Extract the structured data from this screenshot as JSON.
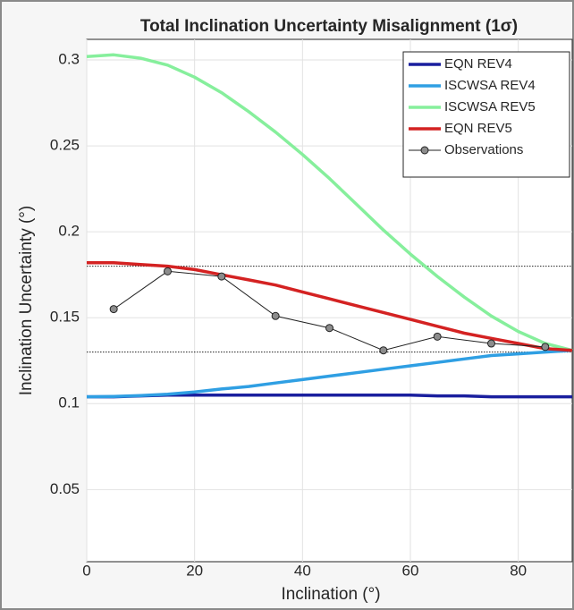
{
  "chart_data": {
    "type": "line",
    "title": "Total Inclination Uncertainty Misalignment (1σ)",
    "x_label": "Inclination (°)",
    "y_label": "Inclination Uncertainty (°)",
    "xlim": [
      0,
      90
    ],
    "xticks": [
      0,
      20,
      40,
      60,
      80
    ],
    "ylim": [
      0.008,
      0.312
    ],
    "yticks": [
      0.05,
      0.1,
      0.15,
      0.2,
      0.25,
      0.3
    ],
    "grid": true,
    "legend": "upper right",
    "x": [
      0,
      5,
      10,
      15,
      20,
      25,
      30,
      35,
      40,
      45,
      50,
      55,
      60,
      65,
      70,
      75,
      80,
      85,
      90
    ],
    "series": [
      {
        "name": "EQN REV4",
        "color": "#1a1f9e",
        "values": [
          0.104,
          0.104,
          0.1045,
          0.105,
          0.105,
          0.105,
          0.105,
          0.105,
          0.105,
          0.105,
          0.105,
          0.105,
          0.105,
          0.1045,
          0.1045,
          0.104,
          0.104,
          0.104,
          0.104
        ]
      },
      {
        "name": "ISCWSA REV4",
        "color": "#2f9fe3",
        "values": [
          0.104,
          0.1042,
          0.1047,
          0.1055,
          0.1068,
          0.1085,
          0.11,
          0.112,
          0.114,
          0.116,
          0.118,
          0.12,
          0.122,
          0.124,
          0.126,
          0.128,
          0.129,
          0.13,
          0.131
        ]
      },
      {
        "name": "ISCWSA REV5",
        "color": "#86ef9c",
        "values": [
          0.302,
          0.303,
          0.301,
          0.297,
          0.29,
          0.281,
          0.27,
          0.258,
          0.245,
          0.231,
          0.216,
          0.201,
          0.187,
          0.174,
          0.162,
          0.151,
          0.142,
          0.135,
          0.131
        ]
      },
      {
        "name": "EQN REV5",
        "color": "#d42222",
        "values": [
          0.182,
          0.182,
          0.181,
          0.18,
          0.178,
          0.175,
          0.172,
          0.169,
          0.165,
          0.161,
          0.157,
          0.153,
          0.149,
          0.145,
          0.141,
          0.138,
          0.135,
          0.132,
          0.131
        ]
      }
    ],
    "observations": {
      "name": "Observations",
      "color": "#222222",
      "marker_color": "#8c8c8c",
      "x": [
        5,
        15,
        25,
        35,
        45,
        55,
        65,
        75,
        85
      ],
      "values": [
        0.155,
        0.177,
        0.174,
        0.151,
        0.144,
        0.131,
        0.139,
        0.135,
        0.133
      ]
    },
    "reference_lines": [
      0.18,
      0.13
    ]
  }
}
